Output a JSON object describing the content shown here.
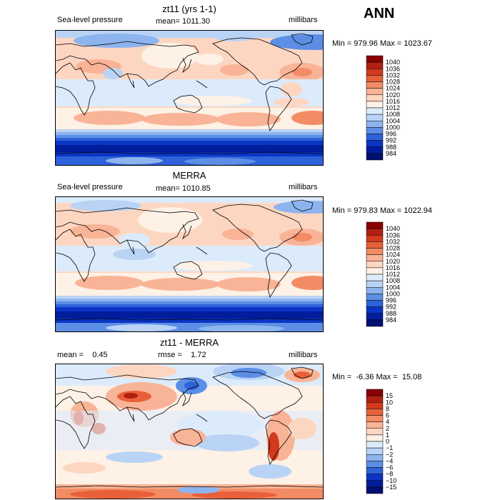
{
  "season": "ANN",
  "panels": [
    {
      "title": "zt11 (yrs 1-1)",
      "left_label": "Sea-level pressure",
      "center_label": "mean= 1011.30",
      "right_label": "millibars",
      "minmax": "Min = 979.96 Max = 1023.67"
    },
    {
      "title": "MERRA",
      "left_label": "Sea-level pressure",
      "center_label": "mean= 1010.85",
      "right_label": "millibars",
      "minmax": "Min = 979.83 Max = 1022.94"
    },
    {
      "title": "zt11 - MERRA",
      "left_label": "mean =    0.45",
      "center_label": "rmse =    1.72",
      "right_label": "millibars",
      "minmax": "Min =  -6.36 Max =  15.08"
    }
  ],
  "chart_data": [
    {
      "type": "heatmap",
      "title": "zt11 (yrs 1-1)",
      "variable": "Sea-level pressure",
      "units": "millibars",
      "mean": 1011.3,
      "min": 979.96,
      "max": 1023.67,
      "colorbar_levels": [
        "1040",
        "1036",
        "1032",
        "1028",
        "1024",
        "1020",
        "1016",
        "1012",
        "1008",
        "1004",
        "1000",
        "996",
        "992",
        "988",
        "984"
      ],
      "colorbar_colors": [
        "#8a0000",
        "#b11f10",
        "#d23a1e",
        "#e8603a",
        "#f38c64",
        "#f9b396",
        "#fdd6c2",
        "#fef1e6",
        "#dcebfb",
        "#b9d3f5",
        "#8db4ee",
        "#5c8ee6",
        "#2e62da",
        "#0c35c4",
        "#001d9c",
        "#00106f"
      ]
    },
    {
      "type": "heatmap",
      "title": "MERRA",
      "variable": "Sea-level pressure",
      "units": "millibars",
      "mean": 1010.85,
      "min": 979.83,
      "max": 1022.94,
      "colorbar_levels": [
        "1040",
        "1036",
        "1032",
        "1028",
        "1024",
        "1020",
        "1016",
        "1012",
        "1008",
        "1004",
        "1000",
        "996",
        "992",
        "988",
        "984"
      ],
      "colorbar_colors": [
        "#8a0000",
        "#b11f10",
        "#d23a1e",
        "#e8603a",
        "#f38c64",
        "#f9b396",
        "#fdd6c2",
        "#fef1e6",
        "#dcebfb",
        "#b9d3f5",
        "#8db4ee",
        "#5c8ee6",
        "#2e62da",
        "#0c35c4",
        "#001d9c",
        "#00106f"
      ]
    },
    {
      "type": "heatmap",
      "title": "zt11 - MERRA",
      "units": "millibars",
      "mean": 0.45,
      "rmse": 1.72,
      "min": -6.36,
      "max": 15.08,
      "colorbar_levels": [
        "15",
        "10",
        "8",
        "6",
        "4",
        "2",
        "1",
        "0",
        "−1",
        "−2",
        "−4",
        "−6",
        "−8",
        "−10",
        "−15"
      ],
      "colorbar_colors": [
        "#8a0000",
        "#b11f10",
        "#d23a1e",
        "#e8603a",
        "#f38c64",
        "#f9b396",
        "#fdd6c2",
        "#fef1e6",
        "#dcebfb",
        "#b9d3f5",
        "#8db4ee",
        "#5c8ee6",
        "#2e62da",
        "#0c35c4",
        "#001d9c",
        "#00106f"
      ]
    }
  ]
}
